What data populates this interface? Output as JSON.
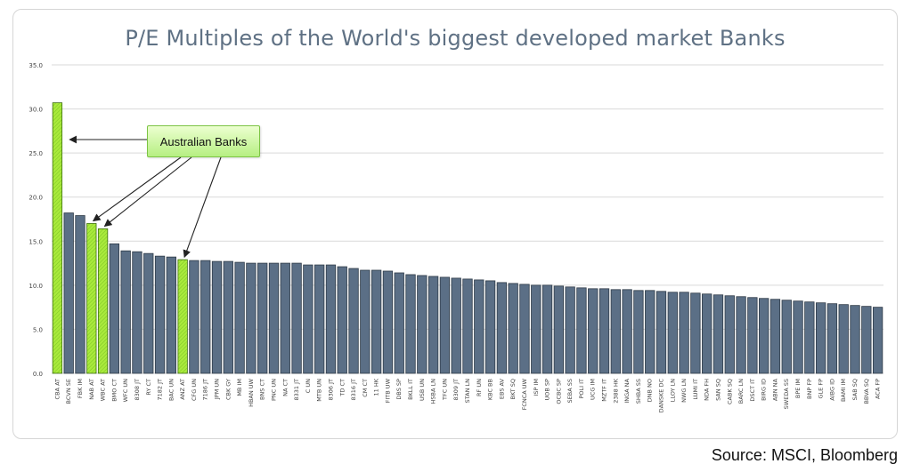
{
  "chart_data": {
    "type": "bar",
    "title": "P/E Multiples of the World's biggest developed market Banks",
    "xlabel": "",
    "ylabel": "",
    "ylim": [
      0,
      35
    ],
    "yticks": [
      "0.0",
      "5.0",
      "10.0",
      "15.0",
      "20.0",
      "25.0",
      "30.0",
      "35.0"
    ],
    "grid": true,
    "categories": [
      "CBA AT",
      "BCVN SE",
      "FBK IM",
      "NAB AT",
      "WBC AT",
      "BMO CT",
      "WFC UN",
      "8308 JT",
      "RY CT",
      "7182 JT",
      "BAC UN",
      "ANZ AT",
      "CFG UN",
      "7186 JT",
      "JPM UN",
      "CBK GY",
      "MB IM",
      "HBAN UW",
      "BNS CT",
      "PNC UN",
      "NA CT",
      "8331 JT",
      "C UN",
      "MTB UN",
      "8306 JT",
      "TD CT",
      "8316 JT",
      "CM CT",
      "11 HK",
      "FITB UW",
      "DBS SP",
      "BKLL IT",
      "USB UN",
      "HSBA LN",
      "TFC UN",
      "8309 JT",
      "STAN LN",
      "RF UN",
      "KBC BB",
      "EBS AV",
      "BKT SQ",
      "FCNCA UW",
      "ISP IM",
      "UOB SP",
      "OCBC SP",
      "SEBA SS",
      "POLI IT",
      "UCG IM",
      "MZTF IT",
      "2388 HK",
      "INGA NA",
      "SHBA SS",
      "DNB NO",
      "DANSKE DC",
      "LLOY LN",
      "NWG LN",
      "LUMI IT",
      "NDA FH",
      "SAN SQ",
      "CABK SQ",
      "BARC LN",
      "DSCT IT",
      "BIRG ID",
      "ABN NA",
      "SWEDA SS",
      "BPE IM",
      "BNP FP",
      "GLE FP",
      "AIBG ID",
      "BAMI IM",
      "SAB SQ",
      "BBVA SQ",
      "ACA FP"
    ],
    "values": [
      30.7,
      18.2,
      17.9,
      17.0,
      16.4,
      14.7,
      13.9,
      13.8,
      13.6,
      13.3,
      13.2,
      12.9,
      12.8,
      12.8,
      12.7,
      12.7,
      12.6,
      12.5,
      12.5,
      12.5,
      12.5,
      12.5,
      12.3,
      12.3,
      12.3,
      12.1,
      11.9,
      11.7,
      11.7,
      11.6,
      11.4,
      11.2,
      11.1,
      11.0,
      10.9,
      10.8,
      10.7,
      10.6,
      10.5,
      10.3,
      10.2,
      10.1,
      10.0,
      10.0,
      9.9,
      9.8,
      9.7,
      9.6,
      9.6,
      9.5,
      9.5,
      9.4,
      9.4,
      9.3,
      9.2,
      9.2,
      9.1,
      9.0,
      8.9,
      8.8,
      8.7,
      8.6,
      8.5,
      8.4,
      8.3,
      8.2,
      8.1,
      8.0,
      7.9,
      7.8,
      7.7,
      7.6,
      7.5
    ],
    "highlighted": [
      "CBA AT",
      "NAB AT",
      "WBC AT",
      "ANZ AT"
    ],
    "annotation": "Australian Banks",
    "colors": {
      "bar": "#5b6f86",
      "highlight": "#a9ea3c",
      "grid": "#d9d9d9",
      "axis_text": "#444444"
    }
  },
  "source": "Source: MSCI, Bloomberg"
}
